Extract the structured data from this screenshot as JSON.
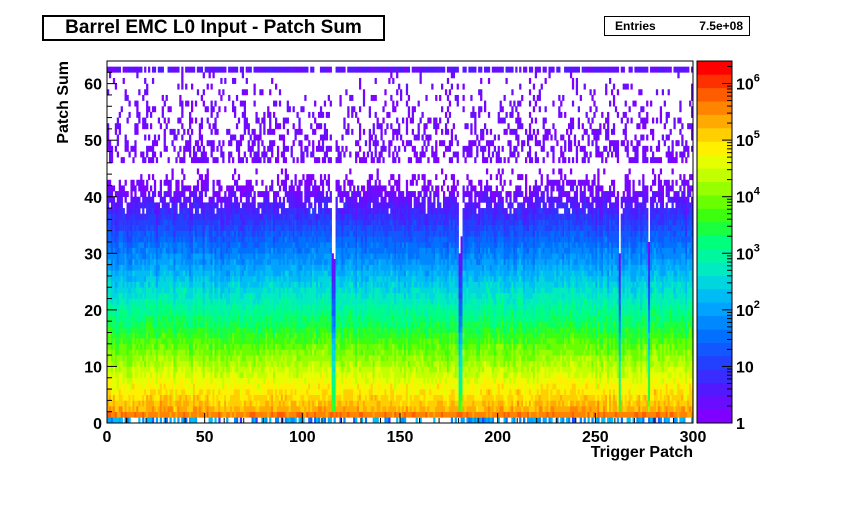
{
  "chart_data": {
    "type": "heatmap",
    "title": "Barrel EMC L0 Input - Patch Sum",
    "xlabel": "Trigger Patch",
    "ylabel": "Patch Sum",
    "xlim": [
      0,
      300
    ],
    "ylim": [
      0,
      64
    ],
    "x_ticks": [
      "0",
      "50",
      "100",
      "150",
      "200",
      "250",
      "300"
    ],
    "y_ticks": [
      "0",
      "10",
      "20",
      "30",
      "40",
      "50",
      "60"
    ],
    "stats": {
      "label": "Entries",
      "value": "7.5e+08"
    },
    "z_scale": "log",
    "z_range": [
      1,
      2500000
    ],
    "colorbar_ticks": [
      {
        "base": "1",
        "exp": "",
        "value": 1
      },
      {
        "base": "10",
        "exp": "",
        "value": 10
      },
      {
        "base": "10",
        "exp": "2",
        "value": 100
      },
      {
        "base": "10",
        "exp": "3",
        "value": 1000
      },
      {
        "base": "10",
        "exp": "4",
        "value": 10000
      },
      {
        "base": "10",
        "exp": "5",
        "value": 100000
      },
      {
        "base": "10",
        "exp": "6",
        "value": 1000000
      }
    ],
    "palette": [
      "#7f00ff",
      "#6a0cff",
      "#5219ff",
      "#3a2bff",
      "#2440ff",
      "#1257ff",
      "#0270ff",
      "#0089ff",
      "#00a3ff",
      "#00bcf5",
      "#00d6dd",
      "#00ecc0",
      "#00f7a0",
      "#00ff7a",
      "#1aff40",
      "#3cff10",
      "#6aff00",
      "#98ff00",
      "#c2ff00",
      "#e6ff00",
      "#fff000",
      "#ffcf00",
      "#ffaa00",
      "#ff8400",
      "#ff5c00",
      "#ff3000",
      "#ff0000"
    ],
    "bin_width_x": 1,
    "bin_width_y": 1,
    "z_model": "z(y) per trigger patch: bin 1 ~ 5e5 (red), bin 2 ~ 2e5, falls ~1 decade per 7-8 bins to ~1 near y=45; sparse counts up to 61; overflow row at y=62 populated with small counts"
  }
}
